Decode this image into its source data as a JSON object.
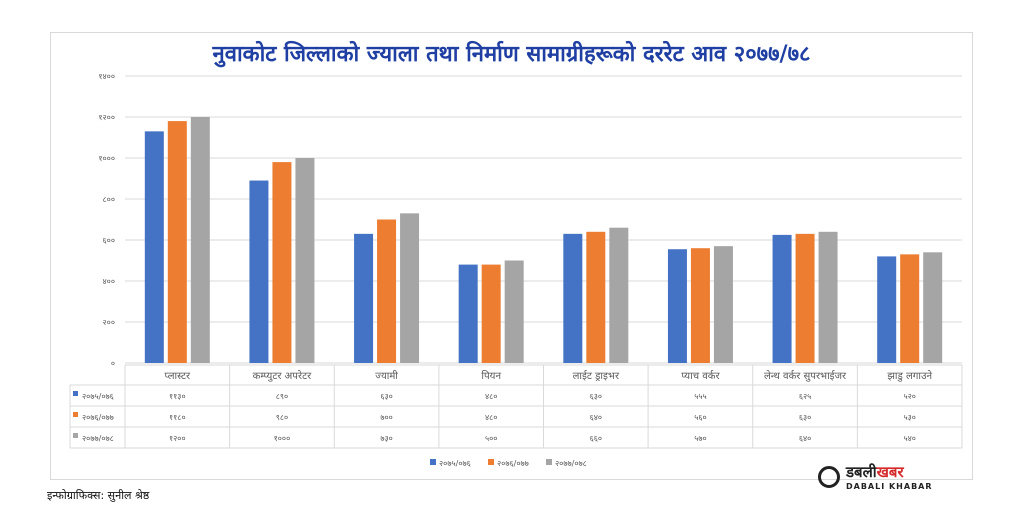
{
  "chart_data": {
    "type": "bar",
    "title": "नुवाकोट जिल्लाको ज्याला तथा निर्माण सामाग्रीहरूको दररेट आव २०७७/७८",
    "categories": [
      "प्लास्टर",
      "कम्प्युटर अपरेटर",
      "ज्यामी",
      "पियन",
      "लाईट ड्राइभर",
      "प्याच वर्कर",
      "लेन्थ वर्कर सुपरभाईजर",
      "झाडु लगाउने"
    ],
    "series": [
      {
        "name": "२०७५/०७६",
        "color": "#4472c4",
        "values": [
          1130,
          890,
          630,
          480,
          630,
          555,
          625,
          520
        ],
        "labels": [
          "११३०",
          "८९०",
          "६३०",
          "४८०",
          "६३०",
          "५५५",
          "६२५",
          "५२०"
        ]
      },
      {
        "name": "२०७६/०७७",
        "color": "#ed7d31",
        "values": [
          1180,
          980,
          700,
          480,
          640,
          560,
          630,
          530
        ],
        "labels": [
          "११८०",
          "९८०",
          "७००",
          "४८०",
          "६४०",
          "५६०",
          "६३०",
          "५३०"
        ]
      },
      {
        "name": "२०७७/०७८",
        "color": "#a5a5a5",
        "values": [
          1200,
          1000,
          730,
          500,
          660,
          570,
          640,
          540
        ],
        "labels": [
          "१२००",
          "१०००",
          "७३०",
          "५००",
          "६६०",
          "५७०",
          "६४०",
          "५४०"
        ]
      }
    ],
    "ylim": [
      0,
      1400
    ],
    "yticks": [
      0,
      200,
      400,
      600,
      800,
      1000,
      1200,
      1400
    ],
    "ytick_labels": [
      "०",
      "२००",
      "४००",
      "६००",
      "८००",
      "१०००",
      "१२००",
      "१४००"
    ],
    "grid": true,
    "legend": "bottom",
    "data_table": true
  },
  "credit": "इन्फोग्राफिक्स: सुनील श्रेष्ठ",
  "logo": {
    "name": "डबली",
    "name_accent": "खबर",
    "latin": "DABALI KHABAR"
  }
}
